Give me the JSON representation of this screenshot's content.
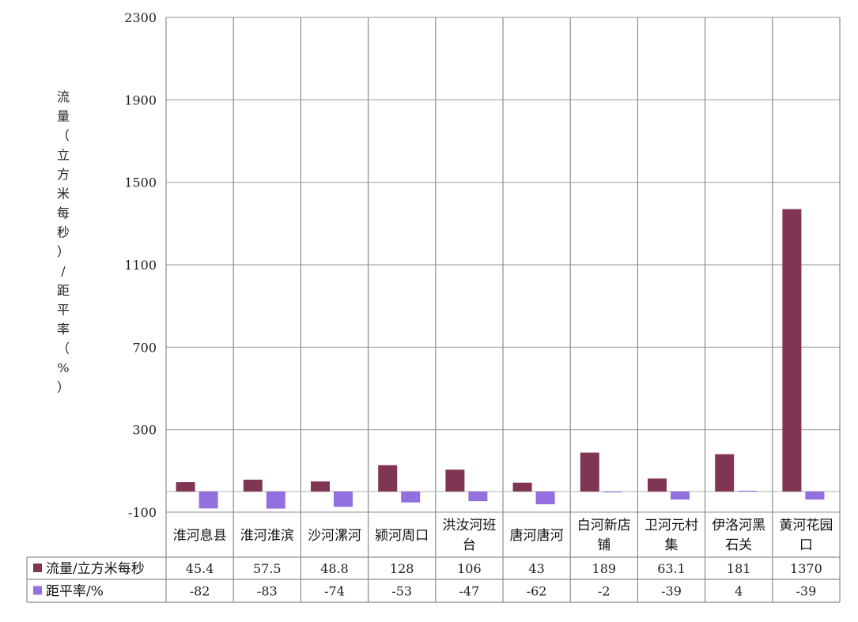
{
  "chart_data": {
    "type": "bar",
    "ylabel": "流量（立方米每秒）/距平率（%）",
    "ylim": [
      -100,
      2300
    ],
    "yticks": [
      -100,
      300,
      700,
      1100,
      1500,
      1900,
      2300
    ],
    "grid": true,
    "legend_placement": "data-table-left",
    "categories": [
      [
        "淮河息县"
      ],
      [
        "淮河淮滨"
      ],
      [
        "沙河漯河"
      ],
      [
        "颍河周口"
      ],
      [
        "洪汝河班",
        "台"
      ],
      [
        "唐河唐河"
      ],
      [
        "白河新店",
        "铺"
      ],
      [
        "卫河元村",
        "集"
      ],
      [
        "伊洛河黑",
        "石关"
      ],
      [
        "黄河花园",
        "口"
      ]
    ],
    "series": [
      {
        "name": "流量/立方米每秒",
        "color": "#7f3553",
        "values": [
          45.4,
          57.5,
          48.8,
          128,
          106,
          43,
          189,
          63.1,
          181,
          1370
        ],
        "labels": [
          "45.4",
          "57.5",
          "48.8",
          "128",
          "106",
          "43",
          "189",
          "63.1",
          "181",
          "1370"
        ]
      },
      {
        "name": "距平率/%",
        "color": "#9370e0",
        "values": [
          -82,
          -83,
          -74,
          -53,
          -47,
          -62,
          -2,
          -39,
          4,
          -39
        ],
        "labels": [
          "-82",
          "-83",
          "-74",
          "-53",
          "-47",
          "-62",
          "-2",
          "-39",
          "4",
          "-39"
        ]
      }
    ]
  }
}
